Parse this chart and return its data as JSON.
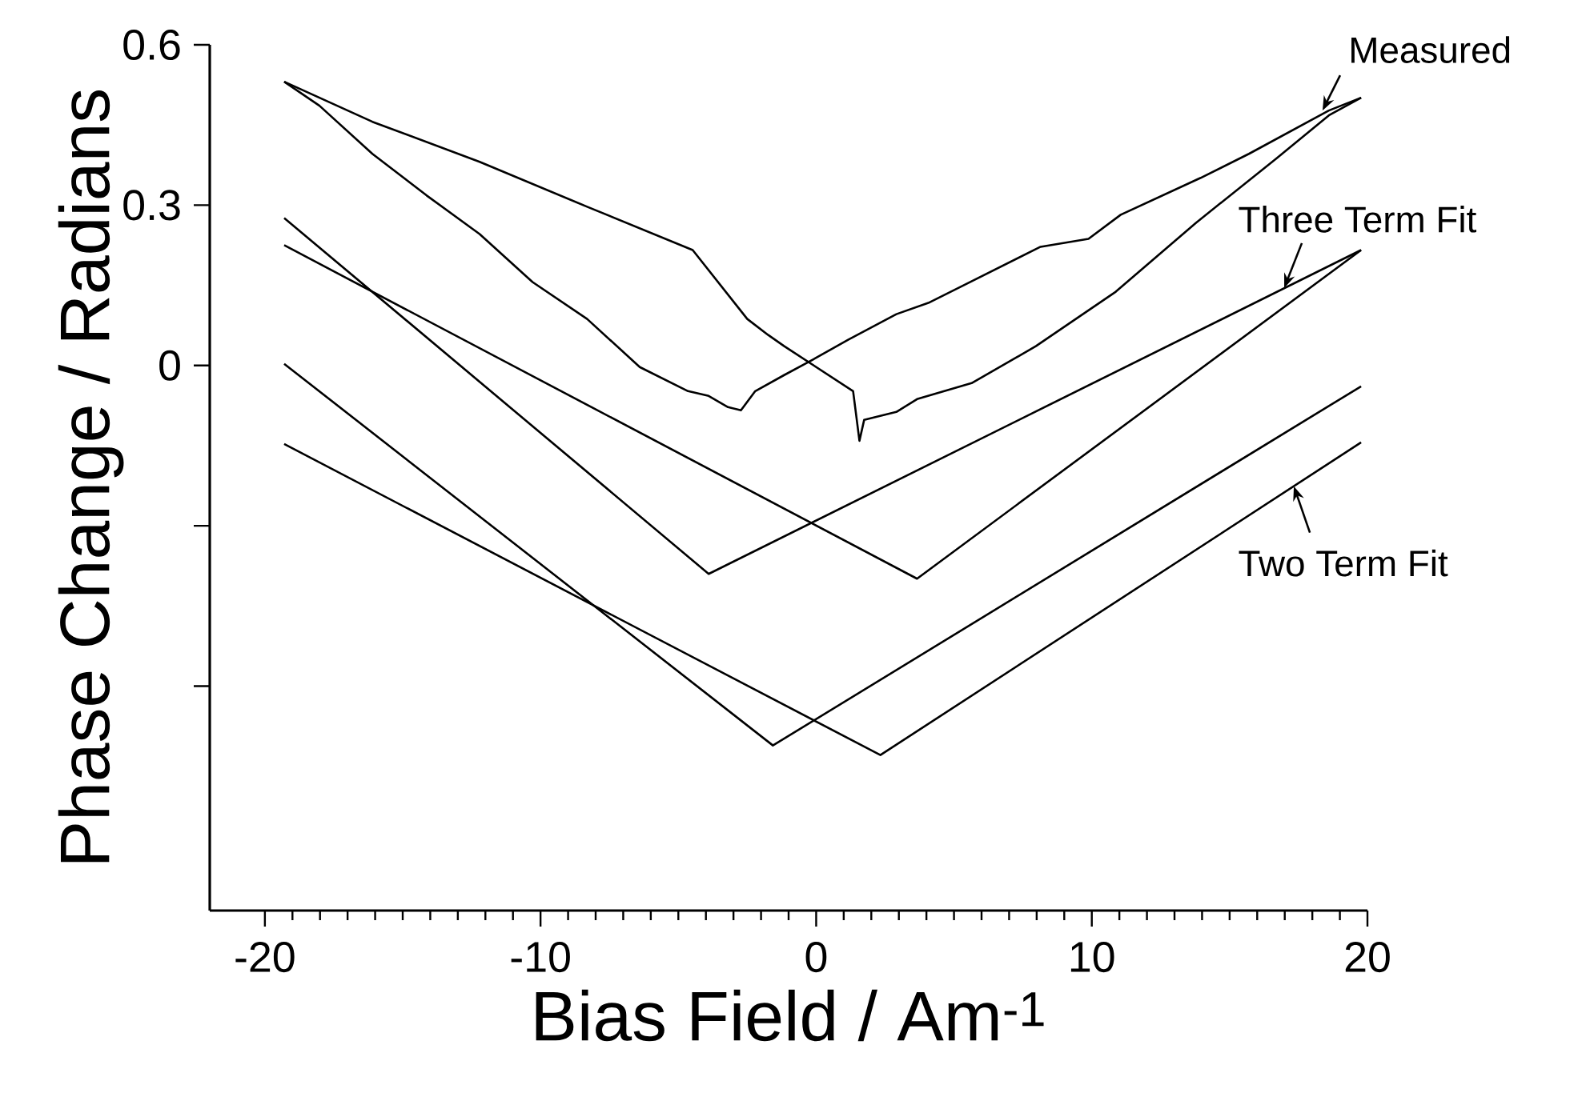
{
  "chart_data": {
    "type": "line",
    "xlabel": "Bias Field / Am$^{-1}$",
    "ylabel": "Phase Change / Radians",
    "xlim": [
      -22,
      20
    ],
    "ylim": [
      -1.02,
      0.6
    ],
    "xticks": [
      -20,
      -10,
      0,
      10,
      20
    ],
    "yticks": [
      0.6,
      0.3,
      0,
      {
        "value": -0.3,
        "label": null
      },
      {
        "value": -0.6,
        "label": null
      }
    ],
    "marker": "none",
    "line_style": "solid",
    "series": [
      {
        "color": "#000000",
        "x": [
          -19.3,
          -18.02,
          -16.1,
          -14.13,
          -12.21,
          -10.29,
          -8.31,
          -6.4,
          -4.65,
          -3.9,
          -3.2,
          -2.73,
          -2.21,
          -1.16,
          -0.29,
          1.16,
          2.91,
          4.07,
          5.23,
          8.14,
          9.88,
          11.05,
          13.95,
          15.7,
          18.6,
          19.77
        ],
        "values": [
          0.531,
          0.486,
          0.396,
          0.318,
          0.246,
          0.156,
          0.087,
          -0.003,
          -0.048,
          -0.057,
          -0.078,
          -0.084,
          -0.048,
          -0.018,
          0.006,
          0.048,
          0.096,
          0.117,
          0.147,
          0.222,
          0.237,
          0.282,
          0.351,
          0.396,
          0.477,
          0.501
        ]
      },
      {
        "color": "#000000",
        "x": [
          -19.3,
          -16.1,
          -12.21,
          -8.31,
          -4.48,
          -2.5,
          -1.74,
          -1.16,
          1.34,
          1.57,
          1.74,
          2.91,
          3.66,
          5.64,
          7.97,
          10.87,
          13.78,
          16.69,
          18.6,
          19.77
        ],
        "values": [
          0.531,
          0.456,
          0.381,
          0.297,
          0.216,
          0.087,
          0.057,
          0.036,
          -0.048,
          -0.141,
          -0.102,
          -0.087,
          -0.063,
          -0.033,
          0.036,
          0.138,
          0.267,
          0.387,
          0.468,
          0.501
        ]
      },
      {
        "color": "#000000",
        "x": [
          -19.3,
          -3.9,
          19.77
        ],
        "values": [
          0.276,
          -0.39,
          0.216
        ]
      },
      {
        "color": "#000000",
        "x": [
          -19.3,
          3.66,
          19.77
        ],
        "values": [
          0.225,
          -0.399,
          0.216
        ]
      },
      {
        "color": "#000000",
        "x": [
          -19.3,
          -1.57,
          19.77
        ],
        "values": [
          0.003,
          -0.711,
          -0.039
        ]
      },
      {
        "color": "#000000",
        "x": [
          -19.3,
          2.33,
          19.77
        ],
        "values": [
          -0.147,
          -0.729,
          -0.144
        ]
      }
    ],
    "annotations": [
      {
        "text": "Measured",
        "x": 18.37,
        "y": 0.477
      },
      {
        "text": "Three Term Fit",
        "x": 16.98,
        "y": 0.145
      },
      {
        "text": "Two Term Fit",
        "x": 17.33,
        "y": -0.226
      }
    ]
  }
}
